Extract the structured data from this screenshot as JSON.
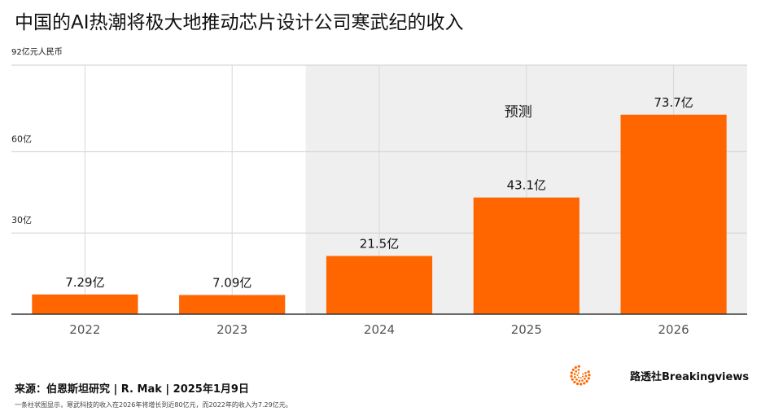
{
  "chart_data": {
    "type": "bar",
    "title": "中国的AI热潮将极大地推动芯片设计公司寒武纪的收入",
    "ylabel": "92亿元人民币",
    "categories": [
      "2022",
      "2023",
      "2024",
      "2025",
      "2026"
    ],
    "values": [
      7.29,
      7.09,
      21.5,
      43.1,
      73.7
    ],
    "value_labels": [
      "7.29亿",
      "7.09亿",
      "21.5亿",
      "43.1亿",
      "73.7亿"
    ],
    "ylim": [
      0,
      92
    ],
    "yticks": [
      30,
      60,
      92
    ],
    "ytick_labels": [
      "30亿",
      "60亿",
      ""
    ],
    "forecast_label": "预测",
    "forecast_start_category": "2024",
    "grid": true,
    "bar_color": "#FF6600",
    "forecast_bg": "#EFEFEF"
  },
  "source": "来源：伯恩斯坦研究 | R. Mak | 2025年1月9日",
  "note": "一条柱状图显示，寒武科技的收入在2026年将增长到近80亿元，而2022年的收入为7.29亿元。",
  "brand": {
    "name": "路透社Breakingviews",
    "icon": "reuters-logo-icon",
    "accent": "#FF6600"
  }
}
